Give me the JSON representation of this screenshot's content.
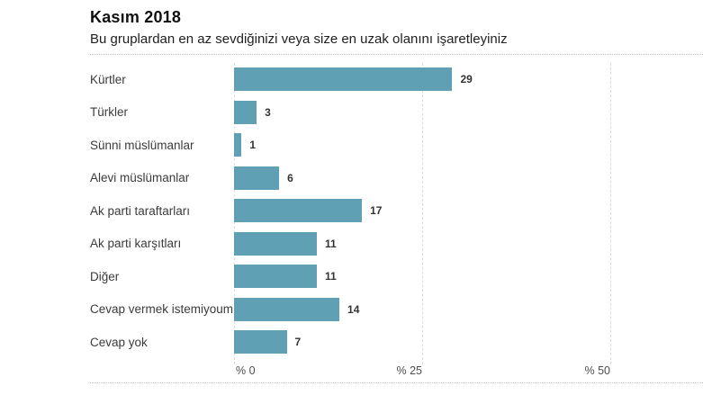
{
  "header": {
    "title": "Kasım 2018",
    "subtitle": "Bu gruplardan en az sevdiğinizi veya size en uzak olanını işaretleyiniz"
  },
  "chart_data": {
    "type": "bar",
    "orientation": "horizontal",
    "title": "Kasım 2018",
    "subtitle": "Bu gruplardan en az sevdiğinizi veya size en uzak olanını işaretleyiniz",
    "categories": [
      "Kürtler",
      "Türkler",
      "Sünni müslümanlar",
      "Alevi müslümanlar",
      "Ak parti taraftarları",
      "Ak parti karşıtları",
      "Diğer",
      "Cevap vermek istemiyoum",
      "Cevap yok"
    ],
    "values": [
      29,
      3,
      1,
      6,
      17,
      11,
      11,
      14,
      7
    ],
    "unit": "%",
    "xlim": [
      0,
      50
    ],
    "x_ticks": [
      "% 0",
      "% 25",
      "% 50"
    ],
    "bar_color": "#5fa0b5",
    "grid": "vertical-dashed",
    "legend": "none"
  }
}
